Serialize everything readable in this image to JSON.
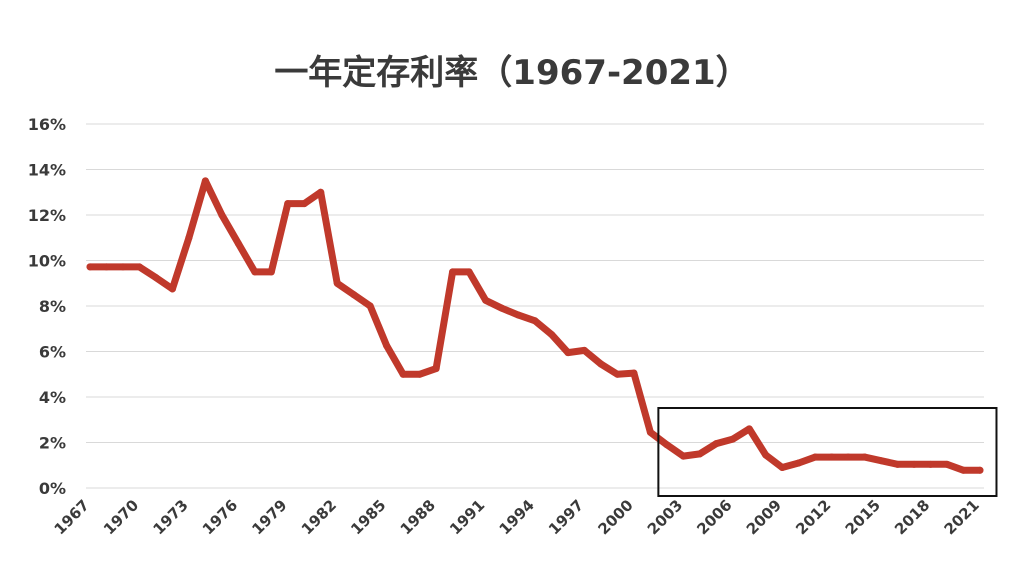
{
  "chart_data": {
    "type": "line",
    "title": "一年定存利率（1967-2021）",
    "xlabel": "",
    "ylabel": "",
    "xlim": [
      1967,
      2021
    ],
    "ylim": [
      0,
      16
    ],
    "y_ticks": [
      "0%",
      "2%",
      "4%",
      "6%",
      "8%",
      "10%",
      "12%",
      "14%",
      "16%"
    ],
    "x_ticks": [
      "1967",
      "1970",
      "1973",
      "1976",
      "1979",
      "1982",
      "1985",
      "1988",
      "1991",
      "1994",
      "1997",
      "2000",
      "2003",
      "2006",
      "2009",
      "2012",
      "2015",
      "2018",
      "2021"
    ],
    "grid": true,
    "legend": "none",
    "line_color": "#c0392b",
    "highlight_box": {
      "x_start": 2001,
      "x_end": 2022
    },
    "series": [
      {
        "name": "",
        "x": [
          1967,
          1968,
          1969,
          1970,
          1971,
          1972,
          1973,
          1974,
          1975,
          1976,
          1977,
          1978,
          1979,
          1980,
          1981,
          1982,
          1983,
          1984,
          1985,
          1986,
          1987,
          1988,
          1989,
          1990,
          1991,
          1992,
          1993,
          1994,
          1995,
          1996,
          1997,
          1998,
          1999,
          2000,
          2001,
          2002,
          2003,
          2004,
          2005,
          2006,
          2007,
          2008,
          2009,
          2010,
          2011,
          2012,
          2013,
          2014,
          2015,
          2016,
          2017,
          2018,
          2019,
          2020,
          2021
        ],
        "values": [
          9.72,
          9.72,
          9.72,
          9.72,
          9.25,
          8.75,
          11.0,
          13.5,
          12.0,
          10.75,
          9.5,
          9.5,
          12.5,
          12.5,
          13.0,
          9.0,
          8.5,
          8.0,
          6.25,
          5.0,
          5.0,
          5.25,
          9.5,
          9.5,
          8.25,
          7.9,
          7.6,
          7.35,
          6.75,
          5.95,
          6.05,
          5.45,
          5.0,
          5.05,
          2.45,
          1.9,
          1.4,
          1.5,
          1.95,
          2.15,
          2.6,
          1.45,
          0.9,
          1.1,
          1.36,
          1.36,
          1.36,
          1.36,
          1.2,
          1.04,
          1.04,
          1.04,
          1.04,
          0.78,
          0.78
        ]
      }
    ]
  }
}
